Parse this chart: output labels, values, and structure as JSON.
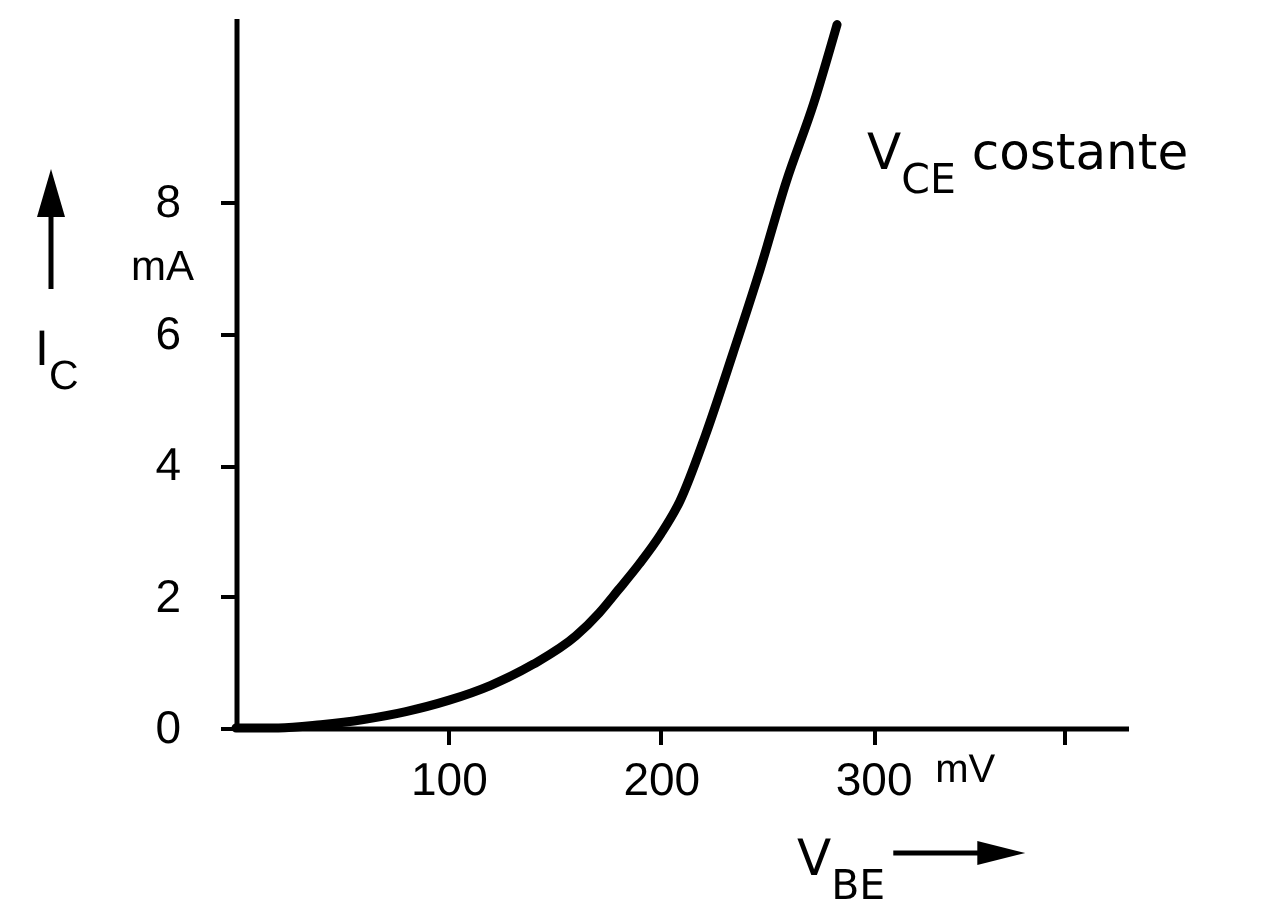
{
  "chart_data": {
    "type": "line",
    "xlabel": "V$_{BE}$",
    "ylabel": "I$_{C}$",
    "annotations": [
      "V$_{CE}$ costante",
      "mA",
      "mV"
    ],
    "x": [
      0,
      20,
      40,
      60,
      80,
      100,
      120,
      140,
      160,
      171,
      180,
      190,
      200,
      209,
      221,
      234,
      247,
      259,
      272,
      283
    ],
    "series": [
      {
        "color": "#000000",
        "values": [
          0,
          0,
          0.05,
          0.13,
          0.25,
          0.42,
          0.65,
          0.97,
          1.4,
          1.75,
          2.1,
          2.5,
          2.95,
          3.45,
          4.45,
          5.7,
          7.0,
          8.3,
          9.5,
          10.7
        ]
      }
    ],
    "xlim": [
      0,
      420
    ],
    "ylim": [
      0,
      10.8
    ],
    "xticks": [
      100,
      200,
      300,
      {
        "value": 390,
        "label": null
      }
    ],
    "yticks": [
      0,
      2,
      4,
      6,
      8
    ],
    "line_style": "solid"
  }
}
